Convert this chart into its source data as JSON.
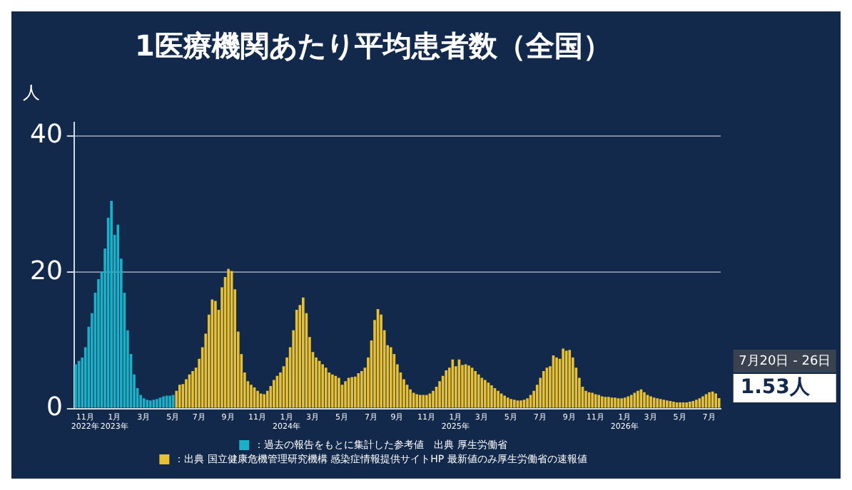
{
  "chart_data": {
    "type": "bar",
    "title": "1医療機関あたり平均患者数（全国）",
    "ylabel": "人",
    "categories": [
      null,
      null,
      null,
      "11月\n2022年",
      null,
      null,
      null,
      null,
      null,
      null,
      null,
      null,
      "1月\n2023年",
      null,
      null,
      null,
      null,
      null,
      null,
      null,
      null,
      "3月",
      null,
      null,
      null,
      null,
      null,
      null,
      null,
      null,
      "5月",
      null,
      null,
      null,
      null,
      null,
      null,
      null,
      "7月",
      null,
      null,
      null,
      null,
      null,
      null,
      null,
      null,
      "9月",
      null,
      null,
      null,
      null,
      null,
      null,
      null,
      null,
      "11月",
      null,
      null,
      null,
      null,
      null,
      null,
      null,
      null,
      "1月\n2024年",
      null,
      null,
      null,
      null,
      null,
      null,
      null,
      "3月",
      null,
      null,
      null,
      null,
      null,
      null,
      null,
      null,
      "5月",
      null,
      null,
      null,
      null,
      null,
      null,
      null,
      null,
      "7月",
      null,
      null,
      null,
      null,
      null,
      null,
      null,
      "9月",
      null,
      null,
      null,
      null,
      null,
      null,
      null,
      null,
      "11月",
      null,
      null,
      null,
      null,
      null,
      null,
      null,
      null,
      "1月\n2025年",
      null,
      null,
      null,
      null,
      null,
      null,
      null,
      "3月",
      null,
      null,
      null,
      null,
      null,
      null,
      null,
      null,
      "5月",
      null,
      null,
      null,
      null,
      null,
      null,
      null,
      null,
      "7月",
      null,
      null,
      null,
      null,
      null,
      null,
      null,
      null,
      "9月",
      null,
      null,
      null,
      null,
      null,
      null,
      null,
      "11月",
      null,
      null,
      null,
      null,
      null,
      null,
      null,
      null,
      "1月\n2026年",
      null,
      null,
      null,
      null,
      null,
      null,
      null,
      "3月",
      null,
      null,
      null,
      null,
      null,
      null,
      null,
      null,
      "5月",
      null,
      null,
      null,
      null,
      null,
      null,
      null,
      null,
      "7月",
      null,
      null,
      null
    ],
    "series": [
      {
        "name": "：過去の報告をもとに集計した参考値　出典 厚生労働省",
        "color": "#1ab0c8",
        "values": [
          6.5,
          7,
          7.5,
          9,
          12,
          14,
          17,
          19,
          20,
          23.5,
          28,
          30.5,
          25.5,
          27,
          22,
          17,
          11.5,
          8,
          5,
          3,
          2,
          1.5,
          1.3,
          1.2,
          1.3,
          1.4,
          1.6,
          1.8,
          1.9,
          1.9,
          2.0,
          null,
          null,
          null,
          null,
          null,
          null,
          null,
          null,
          null,
          null,
          null,
          null,
          null,
          null,
          null,
          null,
          null,
          null,
          null,
          null,
          null,
          null,
          null,
          null,
          null,
          null,
          null,
          null,
          null,
          null,
          null,
          null,
          null,
          null,
          null,
          null,
          null,
          null,
          null,
          null,
          null,
          null,
          null,
          null,
          null,
          null,
          null,
          null,
          null,
          null,
          null,
          null,
          null,
          null,
          null,
          null,
          null,
          null,
          null,
          null,
          null,
          null,
          null,
          null,
          null,
          null,
          null,
          null,
          null,
          null,
          null,
          null,
          null,
          null,
          null,
          null,
          null,
          null,
          null,
          null,
          null,
          null,
          null,
          null,
          null,
          null,
          null,
          null,
          null,
          null,
          null,
          null,
          null,
          null,
          null,
          null,
          null,
          null,
          null,
          null,
          null,
          null,
          null,
          null,
          null,
          null,
          null,
          null,
          null,
          null,
          null,
          null,
          null,
          null,
          null,
          null,
          null,
          null,
          null,
          null,
          null,
          null,
          null,
          null,
          null,
          null,
          null,
          null,
          null,
          null,
          null,
          null,
          null,
          null,
          null,
          null,
          null,
          null,
          null,
          null,
          null,
          null,
          null,
          null,
          null,
          null,
          null,
          null,
          null,
          null,
          null,
          null,
          null,
          null,
          null,
          null,
          null,
          null,
          null,
          null,
          null,
          null,
          null,
          null,
          null,
          null,
          null,
          null
        ]
      },
      {
        "name": "：出典 国立健康危機管理研究機構 感染症情報提供サイトHP 最新値のみ厚生労働省の速報値",
        "color": "#e8c030",
        "values": [
          null,
          null,
          null,
          null,
          null,
          null,
          null,
          null,
          null,
          null,
          null,
          null,
          null,
          null,
          null,
          null,
          null,
          null,
          null,
          null,
          null,
          null,
          null,
          null,
          null,
          null,
          null,
          null,
          null,
          null,
          null,
          2.6,
          3.5,
          3.6,
          4.3,
          5,
          5.5,
          6,
          7.3,
          9,
          11,
          13.8,
          16,
          15.8,
          14.5,
          17.8,
          19.3,
          20.5,
          20.2,
          17.5,
          11.3,
          8,
          5.3,
          4,
          3.5,
          3.1,
          2.6,
          2.2,
          2.1,
          2.6,
          3.3,
          4.2,
          4.8,
          5.3,
          6.2,
          7.5,
          9,
          11.5,
          14.5,
          15.2,
          16.3,
          14,
          10.5,
          8.3,
          7.5,
          7,
          6.5,
          6,
          5.3,
          5,
          4.8,
          4.5,
          3.5,
          4,
          4.5,
          4.6,
          4.7,
          5.2,
          5.5,
          6,
          7.5,
          10,
          13,
          14.6,
          13.8,
          11.5,
          9.3,
          9,
          8,
          6.5,
          5.3,
          4.3,
          3.5,
          2.8,
          2.3,
          2.1,
          2,
          2,
          2,
          2.2,
          2.6,
          3.2,
          4,
          4.8,
          5.6,
          6,
          7.2,
          6.2,
          7.2,
          6.4,
          6.5,
          6.3,
          6,
          5.5,
          5,
          4.5,
          4.2,
          3.8,
          3.4,
          3,
          2.6,
          2.2,
          1.9,
          1.6,
          1.4,
          1.3,
          1.2,
          1.2,
          1.3,
          1.5,
          2,
          2.6,
          3.5,
          4.5,
          5.5,
          6,
          6.2,
          7.8,
          7.5,
          7.3,
          8.8,
          8.5,
          8.6,
          7.5,
          6,
          4.5,
          3.2,
          2.6,
          2.4,
          2.3,
          2.1,
          2,
          1.8,
          1.7,
          1.7,
          1.6,
          1.6,
          1.5,
          1.5,
          1.6,
          1.8,
          2,
          2.3,
          2.6,
          2.8,
          2.4,
          2,
          1.8,
          1.6,
          1.5,
          1.4,
          1.3,
          1.2,
          1.1,
          1,
          0.9,
          0.9,
          0.9,
          0.9,
          1,
          1.1,
          1.3,
          1.5,
          1.8,
          2.1,
          2.4,
          2.5,
          2.2,
          1.53
        ]
      }
    ],
    "ylim": [
      0,
      42
    ],
    "yticks": [
      0,
      20,
      40
    ],
    "grid": "y",
    "legend": "bottom",
    "annotations": [
      "7月20日 - 26日",
      "1.53人"
    ]
  }
}
